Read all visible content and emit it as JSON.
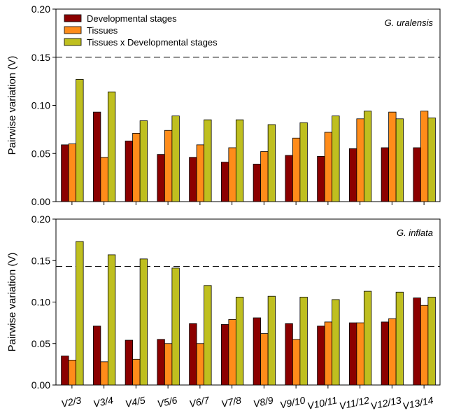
{
  "chart_data": [
    {
      "type": "bar",
      "panel": "top",
      "species_label": "G. uralensis",
      "ylabel": "Pairwise variation (V)",
      "ylim": [
        0,
        0.2
      ],
      "yticks": [
        "0.00",
        "0.05",
        "0.10",
        "0.15",
        "0.20"
      ],
      "threshold": 0.15,
      "categories": [
        "V2/3",
        "V3/4",
        "V4/5",
        "V5/6",
        "V6/7",
        "V7/8",
        "V8/9",
        "V9/10",
        "V10/11",
        "V11/12",
        "V12/13",
        "V13/14"
      ],
      "series": [
        {
          "name": "Developmental stages",
          "color": "#8b0000",
          "values": [
            0.059,
            0.093,
            0.063,
            0.049,
            0.046,
            0.041,
            0.039,
            0.048,
            0.047,
            0.055,
            0.056,
            0.056
          ]
        },
        {
          "name": "Tissues",
          "color": "#ff8c1a",
          "values": [
            0.06,
            0.046,
            0.071,
            0.074,
            0.059,
            0.056,
            0.052,
            0.066,
            0.072,
            0.086,
            0.093,
            0.094
          ]
        },
        {
          "name": "Tissues x Developmental stages",
          "color": "#bfbf1f",
          "values": [
            0.127,
            0.114,
            0.084,
            0.089,
            0.085,
            0.085,
            0.08,
            0.082,
            0.089,
            0.094,
            0.086,
            0.087
          ]
        }
      ],
      "legend": {
        "placement": "top-left"
      }
    },
    {
      "type": "bar",
      "panel": "bottom",
      "species_label": "G. inflata",
      "ylabel": "Pairwise variation (V)",
      "ylim": [
        0,
        0.2
      ],
      "yticks": [
        "0.00",
        "0.05",
        "0.10",
        "0.15",
        "0.20"
      ],
      "threshold": 0.143,
      "categories": [
        "V2/3",
        "V3/4",
        "V4/5",
        "V5/6",
        "V6/7",
        "V7/8",
        "V8/9",
        "V9/10",
        "V10/11",
        "V11/12",
        "V12/13",
        "V13/14"
      ],
      "series": [
        {
          "name": "Developmental stages",
          "color": "#8b0000",
          "values": [
            0.035,
            0.071,
            0.054,
            0.055,
            0.074,
            0.073,
            0.081,
            0.074,
            0.071,
            0.075,
            0.076,
            0.105
          ]
        },
        {
          "name": "Tissues",
          "color": "#ff8c1a",
          "values": [
            0.03,
            0.028,
            0.031,
            0.05,
            0.05,
            0.079,
            0.062,
            0.055,
            0.076,
            0.075,
            0.08,
            0.096
          ]
        },
        {
          "name": "Tissues x Developmental stages",
          "color": "#bfbf1f",
          "values": [
            0.173,
            0.157,
            0.152,
            0.141,
            0.12,
            0.106,
            0.107,
            0.106,
            0.103,
            0.113,
            0.112,
            0.106
          ]
        }
      ]
    }
  ]
}
